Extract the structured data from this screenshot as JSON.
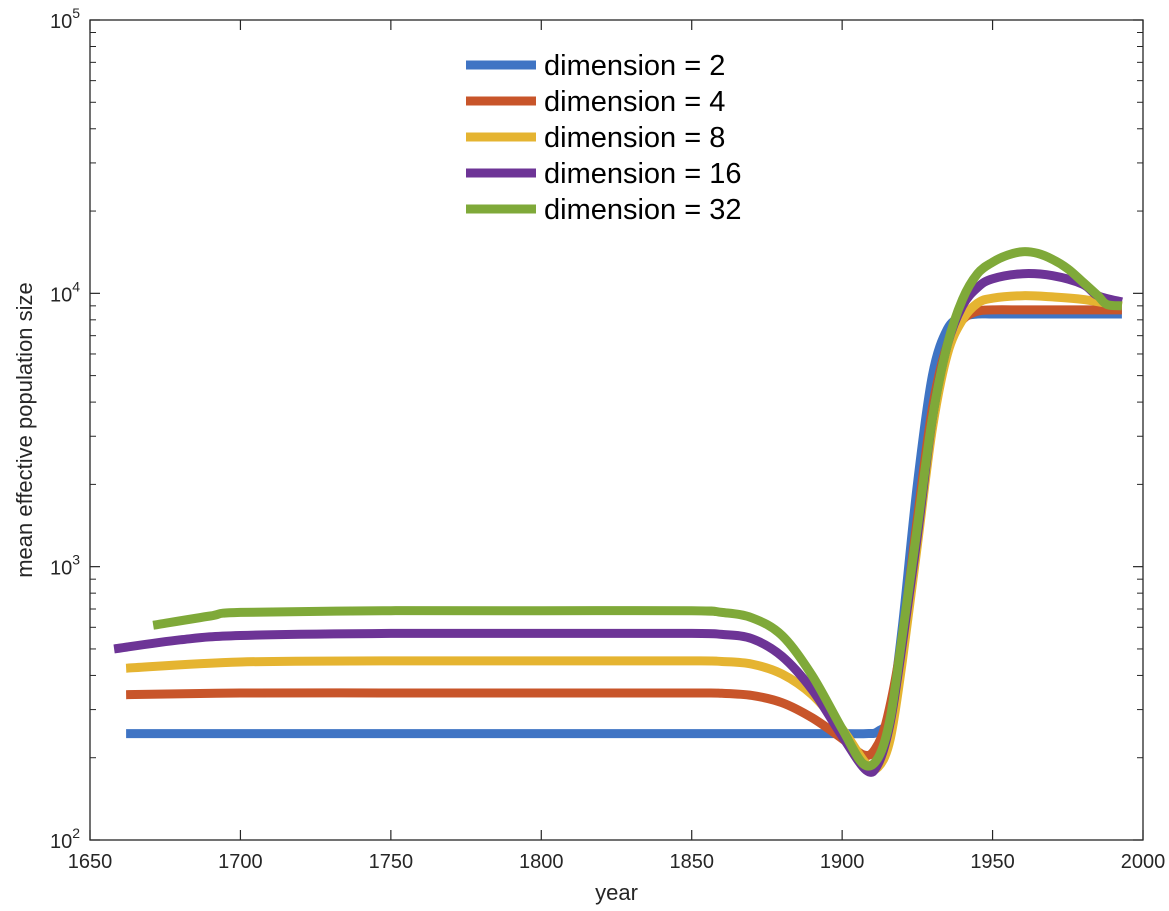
{
  "chart_data": {
    "type": "line",
    "title": "",
    "xlabel": "year",
    "ylabel": "mean effective population size",
    "xlim": [
      1650,
      2000
    ],
    "ylim": [
      100,
      100000
    ],
    "yscale": "log",
    "grid": false,
    "legend_position": "top-center",
    "x_ticks": [
      "1650",
      "1700",
      "1750",
      "1800",
      "1850",
      "1900",
      "1950",
      "2000"
    ],
    "y_ticks": [
      {
        "base": "10",
        "exp": "2"
      },
      {
        "base": "10",
        "exp": "3"
      },
      {
        "base": "10",
        "exp": "4"
      },
      {
        "base": "10",
        "exp": "5"
      }
    ],
    "series": [
      {
        "name": "dimension = 2",
        "color": "#3F74C4",
        "x": [
          1662,
          1700,
          1750,
          1800,
          1850,
          1880,
          1900,
          1908,
          1912,
          1916,
          1920,
          1925,
          1930,
          1935,
          1940,
          1945,
          1950,
          1960,
          1970,
          1980,
          1993
        ],
        "y": [
          245,
          245,
          245,
          245,
          245,
          245,
          245,
          245,
          250,
          290,
          600,
          2000,
          5000,
          7400,
          8200,
          8400,
          8400,
          8400,
          8400,
          8400,
          8400
        ]
      },
      {
        "name": "dimension = 4",
        "color": "#C8552A",
        "x": [
          1662,
          1700,
          1750,
          1800,
          1850,
          1860,
          1870,
          1880,
          1890,
          1900,
          1907,
          1911,
          1915,
          1920,
          1925,
          1930,
          1935,
          1940,
          1945,
          1950,
          1960,
          1970,
          1980,
          1993
        ],
        "y": [
          340,
          345,
          345,
          345,
          345,
          344,
          338,
          318,
          280,
          235,
          205,
          215,
          280,
          550,
          1500,
          3800,
          6500,
          8000,
          8600,
          8700,
          8700,
          8700,
          8700,
          8700
        ]
      },
      {
        "name": "dimension = 8",
        "color": "#E5B431",
        "x": [
          1662,
          1700,
          1750,
          1800,
          1850,
          1860,
          1870,
          1880,
          1890,
          1900,
          1908,
          1912,
          1916,
          1920,
          1925,
          1930,
          1935,
          1940,
          1945,
          1950,
          1960,
          1970,
          1980,
          1993
        ],
        "y": [
          425,
          448,
          452,
          452,
          452,
          450,
          440,
          405,
          340,
          255,
          190,
          185,
          235,
          450,
          1200,
          3200,
          6000,
          8000,
          9200,
          9600,
          9800,
          9700,
          9500,
          9000
        ]
      },
      {
        "name": "dimension = 16",
        "color": "#6D3496",
        "x": [
          1658,
          1680,
          1700,
          1750,
          1800,
          1850,
          1860,
          1870,
          1880,
          1890,
          1900,
          1908,
          1912,
          1916,
          1920,
          1925,
          1930,
          1935,
          1940,
          1945,
          1950,
          1960,
          1970,
          1980,
          1985,
          1993
        ],
        "y": [
          500,
          540,
          560,
          570,
          570,
          570,
          565,
          545,
          470,
          355,
          240,
          180,
          190,
          270,
          520,
          1300,
          3500,
          6500,
          9000,
          10500,
          11300,
          11800,
          11600,
          10800,
          9800,
          9300
        ]
      },
      {
        "name": "dimension = 32",
        "color": "#7FA939",
        "x": [
          1671,
          1690,
          1700,
          1750,
          1800,
          1850,
          1860,
          1870,
          1880,
          1890,
          1900,
          1907,
          1912,
          1916,
          1920,
          1925,
          1930,
          1935,
          1940,
          1945,
          1950,
          1955,
          1960,
          1965,
          1970,
          1975,
          1980,
          1985,
          1988,
          1993
        ],
        "y": [
          610,
          660,
          680,
          690,
          690,
          690,
          680,
          650,
          560,
          400,
          255,
          190,
          200,
          280,
          560,
          1400,
          3500,
          6500,
          9500,
          11800,
          13000,
          13800,
          14200,
          14000,
          13300,
          12300,
          11000,
          9800,
          9100,
          9000
        ]
      }
    ]
  }
}
